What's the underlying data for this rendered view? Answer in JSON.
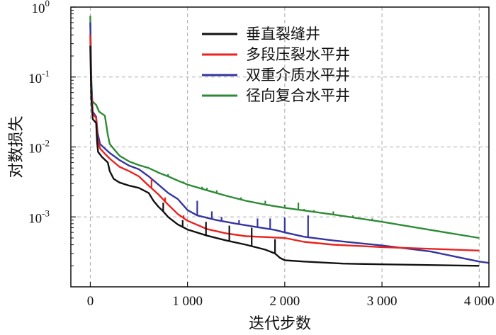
{
  "chart_data": {
    "type": "line",
    "xlabel": "迭代步数",
    "ylabel": "对数损失",
    "x_scale": "linear",
    "y_scale": "log",
    "xlim": [
      -200,
      4100
    ],
    "ylim": [
      0.0001,
      1.0
    ],
    "grid": true,
    "legend_position": "top-right",
    "x_ticks": [
      {
        "value": 0,
        "label": "0"
      },
      {
        "value": 1000,
        "label": "1 000"
      },
      {
        "value": 2000,
        "label": "2 000"
      },
      {
        "value": 3000,
        "label": "3 000"
      },
      {
        "value": 4000,
        "label": "4 000"
      }
    ],
    "y_ticks": [
      {
        "value": 1.0,
        "base": "10",
        "exp": "0"
      },
      {
        "value": 0.1,
        "base": "10",
        "exp": "-1"
      },
      {
        "value": 0.01,
        "base": "10",
        "exp": "-2"
      },
      {
        "value": 0.001,
        "base": "10",
        "exp": "-3"
      }
    ],
    "series": [
      {
        "name": "垂直裂缝井",
        "color": "#111111",
        "points": [
          [
            0,
            0.28
          ],
          [
            10,
            0.05
          ],
          [
            25,
            0.025
          ],
          [
            60,
            0.022
          ],
          [
            70,
            0.012
          ],
          [
            80,
            0.0085
          ],
          [
            120,
            0.0072
          ],
          [
            180,
            0.006
          ],
          [
            200,
            0.0045
          ],
          [
            240,
            0.0035
          ],
          [
            300,
            0.0031
          ],
          [
            400,
            0.0028
          ],
          [
            500,
            0.0026
          ],
          [
            600,
            0.0022
          ],
          [
            650,
            0.0017
          ],
          [
            700,
            0.0014
          ],
          [
            750,
            0.0012
          ],
          [
            800,
            0.001
          ],
          [
            900,
            0.00078
          ],
          [
            1000,
            0.00066
          ],
          [
            1200,
            0.00054
          ],
          [
            1400,
            0.00046
          ],
          [
            1600,
            0.0004
          ],
          [
            1800,
            0.00034
          ],
          [
            1900,
            0.0003
          ],
          [
            1950,
            0.00026
          ],
          [
            2000,
            0.00024
          ],
          [
            2200,
            0.00023
          ],
          [
            2600,
            0.000215
          ],
          [
            3000,
            0.00021
          ],
          [
            4000,
            0.0002
          ]
        ],
        "spikes": [
          [
            750,
            0.0016
          ],
          [
            950,
            0.0009
          ],
          [
            1190,
            0.00085
          ],
          [
            1430,
            0.00075
          ],
          [
            1660,
            0.0007
          ],
          [
            1900,
            0.00048
          ]
        ]
      },
      {
        "name": "多段压裂水平井",
        "color": "#e8231e",
        "points": [
          [
            0,
            0.4
          ],
          [
            10,
            0.06
          ],
          [
            25,
            0.03
          ],
          [
            60,
            0.026
          ],
          [
            75,
            0.013
          ],
          [
            100,
            0.0095
          ],
          [
            150,
            0.008
          ],
          [
            200,
            0.0068
          ],
          [
            300,
            0.0052
          ],
          [
            400,
            0.0045
          ],
          [
            500,
            0.0038
          ],
          [
            600,
            0.0028
          ],
          [
            700,
            0.0021
          ],
          [
            800,
            0.0015
          ],
          [
            900,
            0.0011
          ],
          [
            1000,
            0.00088
          ],
          [
            1200,
            0.00067
          ],
          [
            1400,
            0.00058
          ],
          [
            1600,
            0.00053
          ],
          [
            2000,
            0.0005
          ],
          [
            2200,
            0.00044
          ],
          [
            2500,
            0.0004
          ],
          [
            3000,
            0.00037
          ],
          [
            3500,
            0.00035
          ],
          [
            4000,
            0.00033
          ]
        ],
        "spikes": [
          [
            630,
            0.0035
          ],
          [
            770,
            0.0019
          ],
          [
            960,
            0.00105
          ]
        ]
      },
      {
        "name": "双重介质水平井",
        "color": "#3535a0",
        "points": [
          [
            0,
            0.6
          ],
          [
            10,
            0.08
          ],
          [
            25,
            0.032
          ],
          [
            60,
            0.027
          ],
          [
            75,
            0.016
          ],
          [
            100,
            0.011
          ],
          [
            150,
            0.0095
          ],
          [
            200,
            0.0082
          ],
          [
            300,
            0.0065
          ],
          [
            400,
            0.0054
          ],
          [
            500,
            0.0048
          ],
          [
            600,
            0.0038
          ],
          [
            700,
            0.0029
          ],
          [
            800,
            0.0022
          ],
          [
            900,
            0.0018
          ],
          [
            1000,
            0.00125
          ],
          [
            1100,
            0.00105
          ],
          [
            1300,
            0.0009
          ],
          [
            1500,
            0.0008
          ],
          [
            1700,
            0.00072
          ],
          [
            1900,
            0.00065
          ],
          [
            2000,
            0.0006
          ],
          [
            2200,
            0.00052
          ],
          [
            2500,
            0.00046
          ],
          [
            3000,
            0.00039
          ],
          [
            3500,
            0.00032
          ],
          [
            4000,
            0.00023
          ],
          [
            4100,
            0.00022
          ]
        ],
        "spikes": [
          [
            1100,
            0.0017
          ],
          [
            1250,
            0.0012
          ],
          [
            1350,
            0.001
          ],
          [
            1530,
            0.0009
          ],
          [
            1720,
            0.00095
          ],
          [
            1850,
            0.00095
          ],
          [
            2000,
            0.00098
          ],
          [
            2240,
            0.00105
          ]
        ]
      },
      {
        "name": "径向复合水平井",
        "color": "#2e8b35",
        "points": [
          [
            0,
            0.75
          ],
          [
            10,
            0.1
          ],
          [
            20,
            0.045
          ],
          [
            60,
            0.04
          ],
          [
            90,
            0.032
          ],
          [
            150,
            0.028
          ],
          [
            180,
            0.015
          ],
          [
            200,
            0.011
          ],
          [
            300,
            0.0075
          ],
          [
            400,
            0.0062
          ],
          [
            500,
            0.0055
          ],
          [
            600,
            0.005
          ],
          [
            700,
            0.0043
          ],
          [
            800,
            0.0038
          ],
          [
            900,
            0.0033
          ],
          [
            1000,
            0.0029
          ],
          [
            1200,
            0.0024
          ],
          [
            1400,
            0.002
          ],
          [
            1600,
            0.0017
          ],
          [
            1800,
            0.0015
          ],
          [
            2000,
            0.00135
          ],
          [
            2500,
            0.00108
          ],
          [
            3000,
            0.00085
          ],
          [
            3500,
            0.00065
          ],
          [
            4000,
            0.0005
          ]
        ],
        "spikes": [
          [
            680,
            0.0046
          ],
          [
            800,
            0.0041
          ],
          [
            960,
            0.0032
          ],
          [
            1150,
            0.0027
          ],
          [
            1200,
            0.0026
          ],
          [
            1300,
            0.0024
          ],
          [
            1550,
            0.0019
          ],
          [
            1800,
            0.0017
          ],
          [
            2000,
            0.0015
          ],
          [
            2140,
            0.0016
          ],
          [
            2200,
            0.0013
          ],
          [
            2300,
            0.00125
          ],
          [
            2500,
            0.0012
          ],
          [
            2700,
            0.00105
          ],
          [
            2900,
            0.00095
          ],
          [
            3000,
            0.00088
          ]
        ]
      }
    ]
  }
}
